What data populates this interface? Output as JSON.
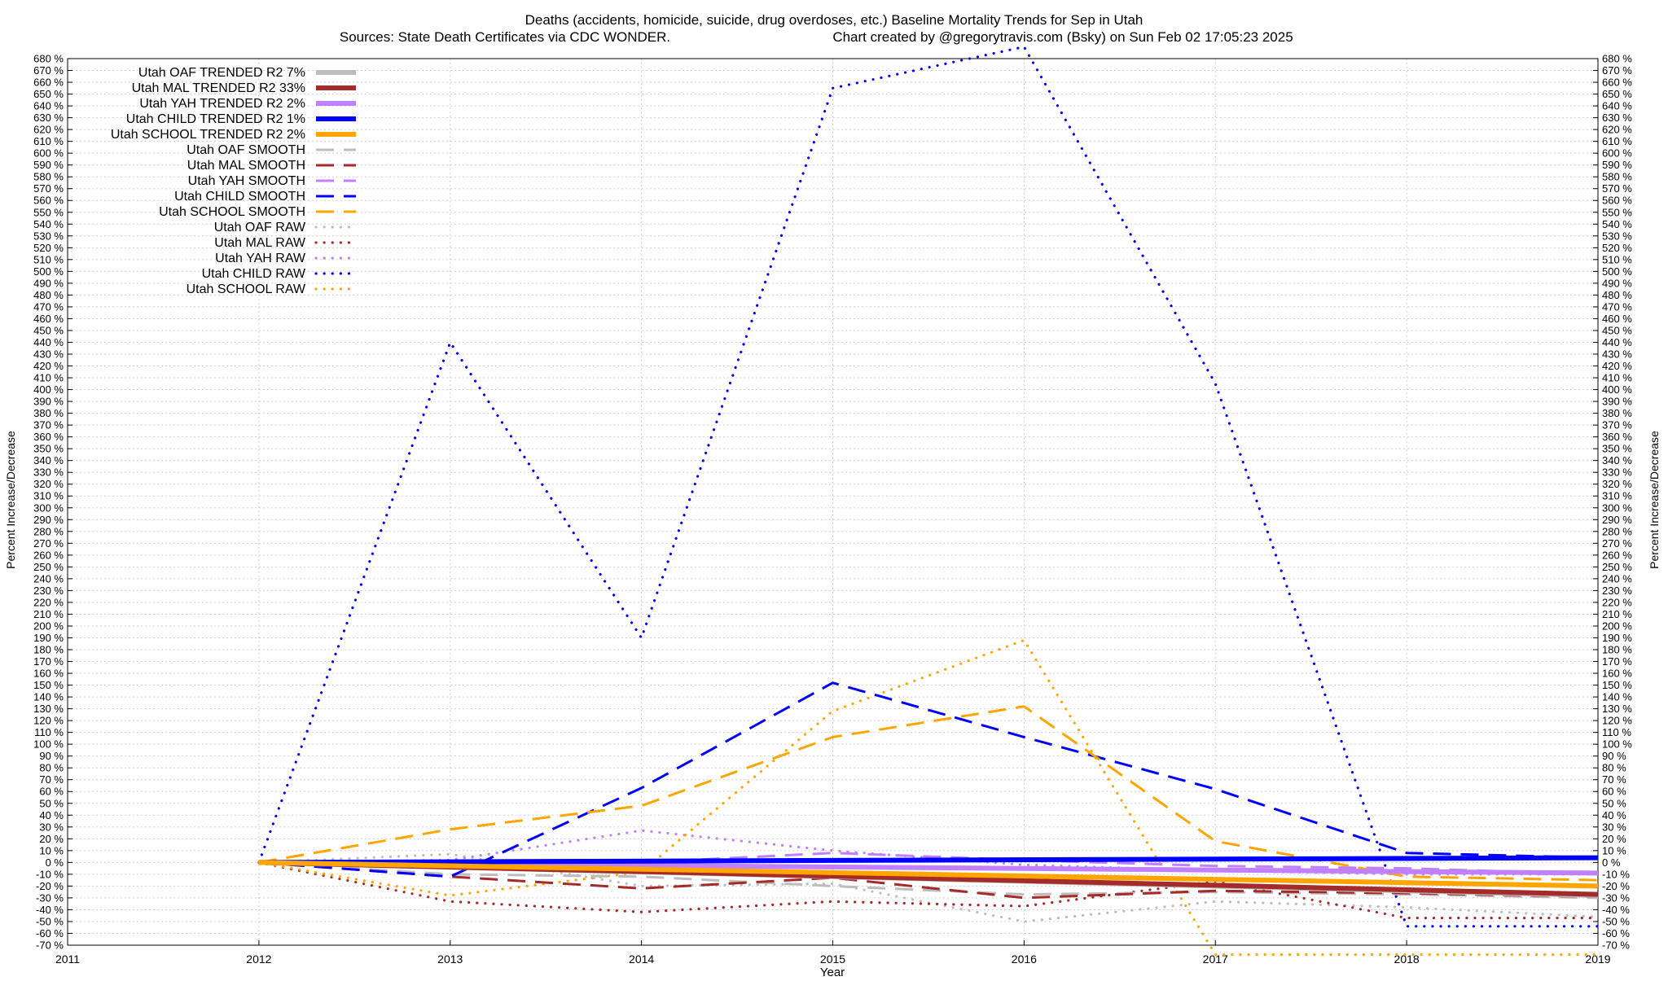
{
  "chart_data": {
    "type": "line",
    "title_line1": "Deaths (accidents, homicide, suicide, drug overdoses, etc.)  Baseline Mortality Trends for Sep in Utah",
    "title_line2_left": "Sources: State Death Certificates via CDC WONDER.",
    "title_line2_right": "Chart created by @gregorytravis.com (Bsky) on Sun Feb 02 17:05:23 2025",
    "xlabel": "Year",
    "ylabel_left": "Percent Increase/Decrease",
    "ylabel_right": "Percent Increase/Decrease",
    "xlim": [
      2011,
      2019
    ],
    "ylim": [
      -70,
      680
    ],
    "xticks": [
      2011,
      2012,
      2013,
      2014,
      2015,
      2016,
      2017,
      2018,
      2019
    ],
    "yticks": [
      -70,
      -60,
      -50,
      -40,
      -30,
      -20,
      -10,
      0,
      10,
      20,
      30,
      40,
      50,
      60,
      70,
      80,
      90,
      100,
      110,
      120,
      130,
      140,
      150,
      160,
      170,
      180,
      190,
      200,
      210,
      220,
      230,
      240,
      250,
      260,
      270,
      280,
      290,
      300,
      310,
      320,
      330,
      340,
      350,
      360,
      370,
      380,
      390,
      400,
      410,
      420,
      430,
      440,
      450,
      460,
      470,
      480,
      490,
      500,
      510,
      520,
      530,
      540,
      550,
      560,
      570,
      580,
      590,
      600,
      610,
      620,
      630,
      640,
      650,
      660,
      670,
      680
    ],
    "ytick_suffix": " %",
    "grid": true,
    "legend_placement": "top-left",
    "series": [
      {
        "name": "Utah OAF TRENDED R2  7%",
        "style": "trend",
        "color": "#bdbdbd",
        "x": [
          2012,
          2019
        ],
        "y": [
          0,
          -28
        ]
      },
      {
        "name": "Utah MAL TRENDED R2  33%",
        "style": "trend",
        "color": "#a52a2a",
        "x": [
          2012,
          2019
        ],
        "y": [
          0,
          -27
        ]
      },
      {
        "name": "Utah YAH TRENDED R2  2%",
        "style": "trend",
        "color": "#c080ff",
        "x": [
          2012,
          2019
        ],
        "y": [
          0,
          -9
        ]
      },
      {
        "name": "Utah CHILD TRENDED R2  1%",
        "style": "trend",
        "color": "#0000ff",
        "x": [
          2012,
          2019
        ],
        "y": [
          0,
          4
        ]
      },
      {
        "name": "Utah SCHOOL TRENDED R2  2%",
        "style": "trend",
        "color": "#ffa500",
        "x": [
          2012,
          2019
        ],
        "y": [
          0,
          -20
        ]
      },
      {
        "name": "Utah OAF SMOOTH",
        "style": "smooth",
        "color": "#bdbdbd",
        "x": [
          2012,
          2013,
          2014,
          2015,
          2016,
          2017,
          2018,
          2019
        ],
        "y": [
          0,
          -10,
          -12,
          -20,
          -27,
          -25,
          -27,
          -30
        ]
      },
      {
        "name": "Utah MAL SMOOTH",
        "style": "smooth",
        "color": "#a52a2a",
        "x": [
          2012,
          2013,
          2014,
          2015,
          2016,
          2017,
          2018,
          2019
        ],
        "y": [
          0,
          -12,
          -22,
          -13,
          -30,
          -24,
          -26,
          -29
        ]
      },
      {
        "name": "Utah YAH SMOOTH",
        "style": "smooth",
        "color": "#c080ff",
        "x": [
          2012,
          2013,
          2014,
          2015,
          2016,
          2017,
          2018,
          2019
        ],
        "y": [
          0,
          -3,
          0,
          8,
          2,
          -3,
          -5,
          -10
        ]
      },
      {
        "name": "Utah CHILD SMOOTH",
        "style": "smooth",
        "color": "#0000ff",
        "x": [
          2012,
          2013,
          2014,
          2015,
          2016,
          2017,
          2018,
          2019
        ],
        "y": [
          0,
          -12,
          63,
          152,
          106,
          62,
          8,
          4
        ]
      },
      {
        "name": "Utah SCHOOL SMOOTH",
        "style": "smooth",
        "color": "#ffa500",
        "x": [
          2012,
          2013,
          2014,
          2015,
          2016,
          2017,
          2018,
          2019
        ],
        "y": [
          0,
          28,
          48,
          106,
          132,
          18,
          -12,
          -15
        ]
      },
      {
        "name": "Utah OAF RAW",
        "style": "raw",
        "color": "#bdbdbd",
        "x": [
          2012,
          2013,
          2014,
          2015,
          2016,
          2017,
          2018,
          2019
        ],
        "y": [
          0,
          7,
          -20,
          -18,
          -50,
          -33,
          -38,
          -46
        ]
      },
      {
        "name": "Utah MAL RAW",
        "style": "raw",
        "color": "#a52a2a",
        "x": [
          2012,
          2013,
          2014,
          2015,
          2016,
          2017,
          2018,
          2019
        ],
        "y": [
          0,
          -33,
          -42,
          -33,
          -37,
          -16,
          -47,
          -47
        ]
      },
      {
        "name": "Utah YAH RAW",
        "style": "raw",
        "color": "#c080ff",
        "x": [
          2012,
          2013,
          2014,
          2015,
          2016,
          2017,
          2018,
          2019
        ],
        "y": [
          0,
          2,
          27,
          10,
          -2,
          -7,
          -10,
          -10
        ]
      },
      {
        "name": "Utah CHILD RAW",
        "style": "raw",
        "color": "#0000ff",
        "x": [
          2012,
          2013,
          2014,
          2015,
          2016,
          2017,
          2018,
          2019
        ],
        "y": [
          0,
          440,
          190,
          655,
          690,
          405,
          -54,
          -54
        ]
      },
      {
        "name": "Utah SCHOOL RAW",
        "style": "raw",
        "color": "#ffa500",
        "x": [
          2012,
          2013,
          2014,
          2015,
          2016,
          2017,
          2018,
          2019
        ],
        "y": [
          0,
          -28,
          -8,
          128,
          188,
          -78,
          -78,
          -78
        ]
      }
    ]
  }
}
